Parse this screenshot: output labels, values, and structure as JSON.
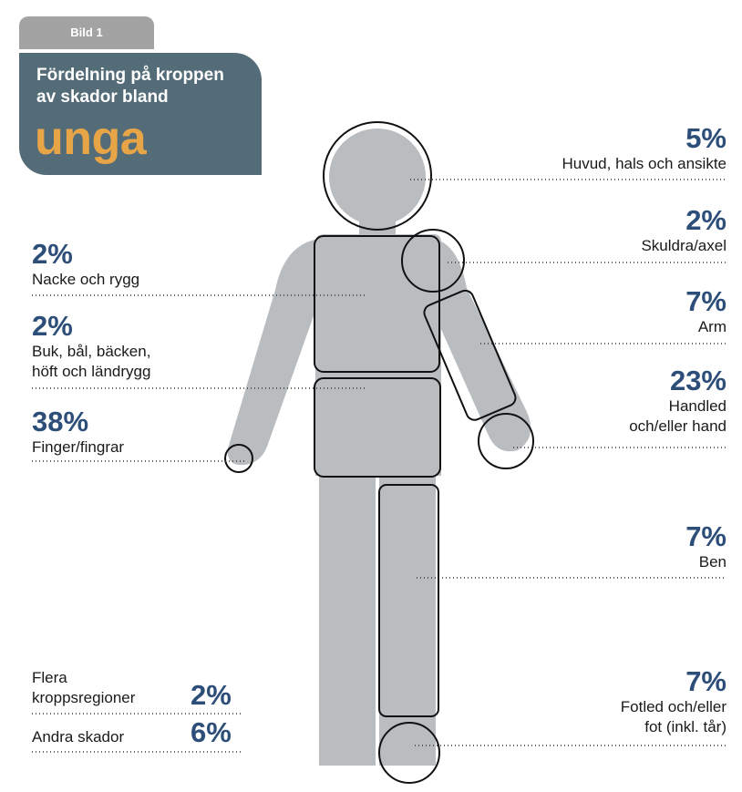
{
  "header": {
    "tab_label": "Bild 1",
    "title_line1": "Fördelning på kroppen",
    "title_line2": "av skador bland",
    "title_highlight": "unga"
  },
  "colors": {
    "body_fill": "#b9bdc0",
    "title_bg": "#546c78",
    "tab_bg": "#a3a3a3",
    "highlight": "#e8a547",
    "percent": "#2c4e78"
  },
  "regions": {
    "head": {
      "percent": "5%",
      "name": "Huvud, hals och ansikte"
    },
    "shoulder": {
      "percent": "2%",
      "name": "Skuldra/axel"
    },
    "arm": {
      "percent": "7%",
      "name": "Arm"
    },
    "hand": {
      "percent": "23%",
      "name_line1": "Handled",
      "name_line2": "och/eller hand"
    },
    "leg": {
      "percent": "7%",
      "name": "Ben"
    },
    "ankle": {
      "percent": "7%",
      "name_line1": "Fotled och/eller",
      "name_line2": "fot (inkl. tår)"
    },
    "neck_back": {
      "percent": "2%",
      "name": "Nacke och rygg"
    },
    "abdomen": {
      "percent": "2%",
      "name_line1": "Buk, bål, bäcken,",
      "name_line2": "höft och ländrygg"
    },
    "finger": {
      "percent": "38%",
      "name": "Finger/fingrar"
    },
    "multiple": {
      "percent": "2%",
      "name_line1": "Flera",
      "name_line2": "kroppsregioner"
    },
    "other": {
      "percent": "6%",
      "name": "Andra skador"
    }
  }
}
